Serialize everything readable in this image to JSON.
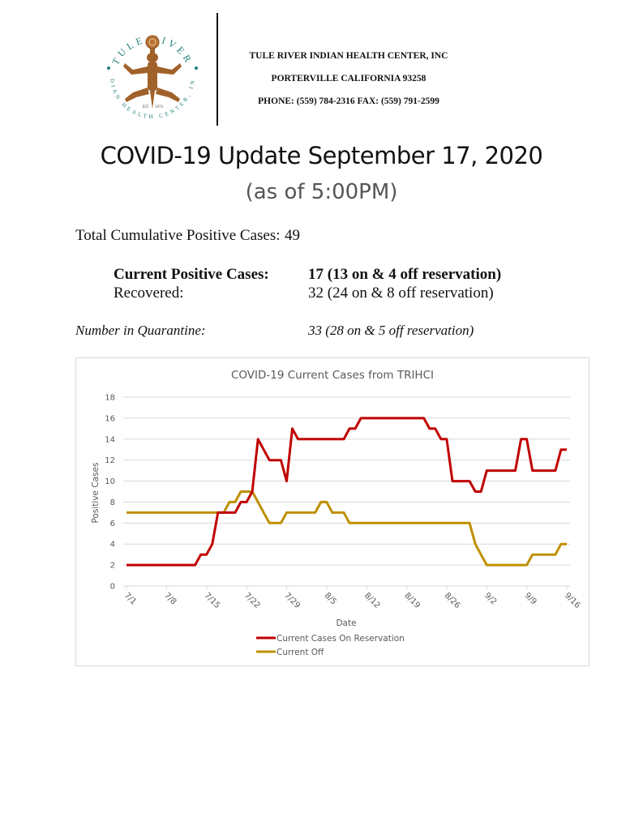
{
  "header": {
    "logo": {
      "top_text": "TULE RIVER",
      "ring_text": "INDIAN HEALTH CENTER, INC.",
      "est_left": "EST.",
      "est_right": "1973"
    },
    "organization": "TULE RIVER INDIAN HEALTH CENTER, INC",
    "address": "PORTERVILLE CALIFORNIA 93258",
    "phone_fax": "PHONE: (559) 784-2316 FAX: (559) 791-2599"
  },
  "title": "COVID-19 Update September 17, 2020",
  "subtitle": "(as of 5:00PM)",
  "stats": {
    "total_label": "Total Cumulative Positive Cases:",
    "total_value": "49",
    "current_label": "Current Positive Cases:",
    "current_value": "17 (13 on & 4 off reservation)",
    "recovered_label": "Recovered:",
    "recovered_value": "32 (24 on & 8 off reservation)",
    "quarantine_label": "Number in Quarantine:",
    "quarantine_value": "33 (28 on & 5 off reservation)"
  },
  "chart_data": {
    "type": "line",
    "title": "COVID-19 Current Cases from TRIHCI",
    "xlabel": "Date",
    "ylabel": "Positive Cases",
    "ylim": [
      0,
      18
    ],
    "yticks": [
      0,
      2,
      4,
      6,
      8,
      10,
      12,
      14,
      16,
      18
    ],
    "grid": true,
    "legend_position": "bottom",
    "xtick_labels": [
      "7/1",
      "7/8",
      "7/15",
      "7/22",
      "7/29",
      "8/5",
      "8/12",
      "8/19",
      "8/26",
      "9/2",
      "9/9",
      "9/16"
    ],
    "x_start": "7/1",
    "x_end": "9/16",
    "series": [
      {
        "name": "Current Cases On Reservation",
        "color": "#c00000",
        "values": [
          2,
          2,
          2,
          2,
          2,
          2,
          2,
          2,
          2,
          2,
          2,
          2,
          2,
          3,
          3,
          4,
          7,
          7,
          7,
          7,
          8,
          8,
          9,
          14,
          13,
          12,
          12,
          12,
          10,
          15,
          14,
          14,
          14,
          14,
          14,
          14,
          14,
          14,
          14,
          15,
          15,
          16,
          16,
          16,
          16,
          16,
          16,
          16,
          16,
          16,
          16,
          16,
          16,
          15,
          15,
          14,
          14,
          10,
          10,
          10,
          10,
          9,
          9,
          11,
          11,
          11,
          11,
          11,
          11,
          14,
          14,
          11,
          11,
          11,
          11,
          11,
          13,
          13
        ]
      },
      {
        "name": "Current Off",
        "color": "#bf9000",
        "values": [
          7,
          7,
          7,
          7,
          7,
          7,
          7,
          7,
          7,
          7,
          7,
          7,
          7,
          7,
          7,
          7,
          7,
          7,
          8,
          8,
          9,
          9,
          9,
          8,
          7,
          6,
          6,
          6,
          7,
          7,
          7,
          7,
          7,
          7,
          8,
          8,
          7,
          7,
          7,
          6,
          6,
          6,
          6,
          6,
          6,
          6,
          6,
          6,
          6,
          6,
          6,
          6,
          6,
          6,
          6,
          6,
          6,
          6,
          6,
          6,
          6,
          4,
          3,
          2,
          2,
          2,
          2,
          2,
          2,
          2,
          2,
          3,
          3,
          3,
          3,
          3,
          4,
          4
        ]
      }
    ]
  }
}
